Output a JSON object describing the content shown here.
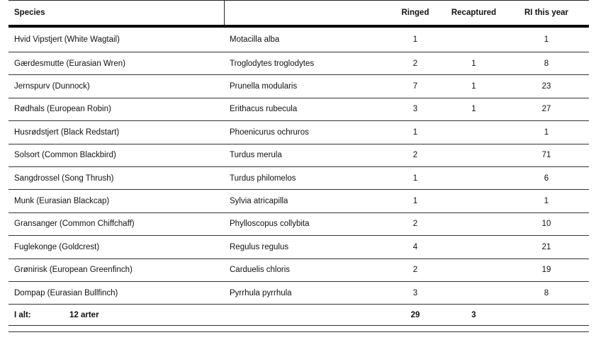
{
  "table": {
    "headers": {
      "species": "Species",
      "latin": "",
      "ringed": "Ringed",
      "recaptured": "Recaptured",
      "ri_this_year": "RI this year"
    },
    "rows": [
      {
        "species": "Hvid Vipstjert  (White Wagtail)",
        "latin": "Motacilla alba",
        "ringed": "1",
        "recaptured": "",
        "ri": "1"
      },
      {
        "species": "Gærdesmutte  (Eurasian Wren)",
        "latin": "Troglodytes troglodytes",
        "ringed": "2",
        "recaptured": "1",
        "ri": "8"
      },
      {
        "species": "Jernspurv  (Dunnock)",
        "latin": "Prunella modularis",
        "ringed": "7",
        "recaptured": "1",
        "ri": "23"
      },
      {
        "species": "Rødhals  (European Robin)",
        "latin": "Erithacus rubecula",
        "ringed": "3",
        "recaptured": "1",
        "ri": "27"
      },
      {
        "species": "Husrødstjert  (Black Redstart)",
        "latin": "Phoenicurus ochruros",
        "ringed": "1",
        "recaptured": "",
        "ri": "1"
      },
      {
        "species": "Solsort  (Common Blackbird)",
        "latin": "Turdus merula",
        "ringed": "2",
        "recaptured": "",
        "ri": "71"
      },
      {
        "species": "Sangdrossel  (Song Thrush)",
        "latin": "Turdus philomelos",
        "ringed": "1",
        "recaptured": "",
        "ri": "6"
      },
      {
        "species": "Munk  (Eurasian Blackcap)",
        "latin": "Sylvia atricapilla",
        "ringed": "1",
        "recaptured": "",
        "ri": "1"
      },
      {
        "species": "Gransanger  (Common Chiffchaff)",
        "latin": "Phylloscopus collybita",
        "ringed": "2",
        "recaptured": "",
        "ri": "10"
      },
      {
        "species": "Fuglekonge  (Goldcrest)",
        "latin": "Regulus regulus",
        "ringed": "4",
        "recaptured": "",
        "ri": "21"
      },
      {
        "species": "Grønirisk  (European Greenfinch)",
        "latin": "Carduelis chloris",
        "ringed": "2",
        "recaptured": "",
        "ri": "19"
      },
      {
        "species": "Dompap  (Eurasian Bullfinch)",
        "latin": "Pyrrhula pyrrhula",
        "ringed": "3",
        "recaptured": "",
        "ri": "8"
      }
    ],
    "total": {
      "label": "I alt:",
      "count_label": "12 arter",
      "ringed": "29",
      "recaptured": "3",
      "ri": ""
    }
  }
}
